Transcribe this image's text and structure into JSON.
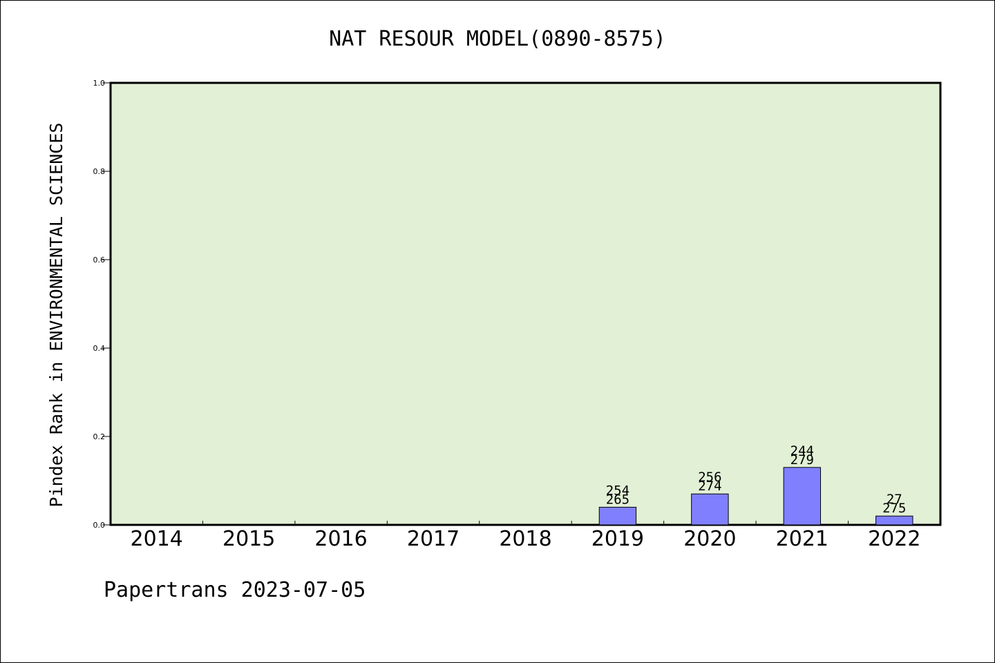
{
  "chart_data": {
    "type": "bar",
    "title": "NAT RESOUR MODEL(0890-8575)",
    "ylabel": "Pindex Rank in ENVIRONMENTAL SCIENCES",
    "xlabel": "",
    "categories": [
      "2014",
      "2015",
      "2016",
      "2017",
      "2018",
      "2019",
      "2020",
      "2021",
      "2022"
    ],
    "values": [
      0,
      0,
      0,
      0,
      0,
      0.04,
      0.07,
      0.13,
      0.02
    ],
    "bar_labels": [
      null,
      null,
      null,
      null,
      null,
      {
        "top": "254",
        "bottom": "265"
      },
      {
        "top": "256",
        "bottom": "274"
      },
      {
        "top": "244",
        "bottom": "279"
      },
      {
        "top": "27",
        "bottom": "275"
      }
    ],
    "ylim": [
      0,
      1.0
    ],
    "yticks": [
      "0.0",
      "0.2",
      "0.4",
      "0.6",
      "0.8",
      "1.0"
    ],
    "grid": false,
    "colors": {
      "plot_background": "#e2f0d6",
      "bar_fill": "#8080ff",
      "axis": "#000000"
    }
  },
  "footer": {
    "source": "Papertrans 2023-07-05"
  }
}
